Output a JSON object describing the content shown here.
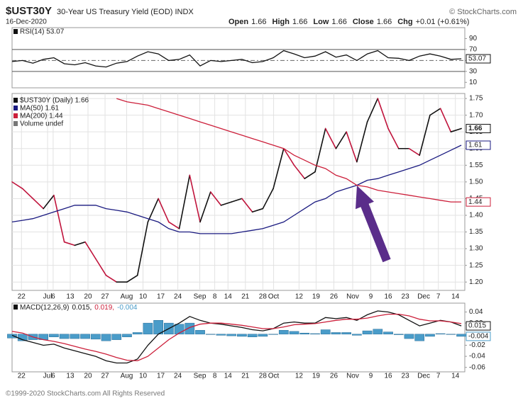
{
  "header": {
    "symbol": "$UST30Y",
    "description": "30-Year US Treasury Yield (EOD) INDX",
    "copyright": "© StockCharts.com",
    "date": "16-Dec-2020",
    "quote": [
      {
        "label": "Open",
        "value": "1.66"
      },
      {
        "label": "High",
        "value": "1.66"
      },
      {
        "label": "Low",
        "value": "1.66"
      },
      {
        "label": "Close",
        "value": "1.66"
      },
      {
        "label": "Chg",
        "value": "+0.01 (+0.61%)"
      }
    ]
  },
  "footer": "©1999-2020 StockCharts.com All Rights Reserved",
  "chart_data": [
    {
      "type": "line",
      "ylim": [
        0,
        110
      ],
      "yticks": [
        90,
        70,
        50,
        30,
        10
      ],
      "bands": [
        30,
        70
      ],
      "midline": 50,
      "series": [
        {
          "name": "RSI(14) 53.07",
          "color": "#111111",
          "kind": "line",
          "end_label": "53.07",
          "values": [
            48,
            50,
            45,
            52,
            55,
            44,
            42,
            46,
            40,
            38,
            45,
            48,
            58,
            66,
            62,
            50,
            52,
            60,
            40,
            50,
            48,
            50,
            52,
            46,
            48,
            55,
            68,
            62,
            55,
            58,
            66,
            56,
            60,
            50,
            62,
            68,
            55,
            54,
            50,
            58,
            62,
            58,
            52,
            53.07
          ]
        }
      ]
    },
    {
      "type": "line",
      "grid": true,
      "ylim": [
        1.175,
        1.765
      ],
      "yticks": [
        {
          "value": 1.2,
          "label": "1.20"
        },
        1.25,
        {
          "value": 1.3,
          "label": "1.30"
        },
        1.35,
        {
          "value": 1.4,
          "label": "1.40"
        },
        1.45,
        {
          "value": 1.5,
          "label": "1.50"
        },
        1.55,
        {
          "value": 1.6,
          "label": "1.60"
        },
        1.65,
        {
          "value": 1.7,
          "label": "1.70"
        },
        1.75
      ],
      "x": [
        0,
        3,
        6,
        9,
        12,
        15,
        18,
        21,
        24,
        27,
        30,
        33,
        36,
        39,
        42,
        45,
        48,
        51,
        54,
        57,
        60,
        63,
        66,
        69,
        72,
        75,
        78,
        81,
        84,
        87,
        90,
        93,
        96,
        99,
        102,
        105,
        108,
        111,
        114,
        117,
        120,
        123,
        126,
        129
      ],
      "xlim": [
        0,
        130
      ],
      "xticks": [
        {
          "value": 2.7,
          "label": "22"
        },
        {
          "value": 10.2,
          "label": "Jul"
        },
        {
          "value": 11.8,
          "label": "6"
        },
        {
          "value": 16.7,
          "label": "13"
        },
        {
          "value": 21.8,
          "label": "20"
        },
        {
          "value": 26.7,
          "label": "27"
        },
        {
          "value": 32.9,
          "label": "Aug"
        },
        {
          "value": 37.6,
          "label": "10"
        },
        {
          "value": 42.7,
          "label": "17"
        },
        {
          "value": 47.6,
          "label": "24"
        },
        {
          "value": 53.9,
          "label": "Sep"
        },
        {
          "value": 58.2,
          "label": "8"
        },
        {
          "value": 62,
          "label": "14"
        },
        {
          "value": 67,
          "label": "21"
        },
        {
          "value": 72,
          "label": "28"
        },
        {
          "value": 75.1,
          "label": "Oct"
        },
        {
          "value": 82.4,
          "label": "12"
        },
        {
          "value": 87.3,
          "label": "19"
        },
        {
          "value": 92.4,
          "label": "26"
        },
        {
          "value": 97.8,
          "label": "Nov"
        },
        {
          "value": 103,
          "label": "9"
        },
        {
          "value": 108,
          "label": "16"
        },
        {
          "value": 112.9,
          "label": "23"
        },
        {
          "value": 118.2,
          "label": "Dec"
        },
        {
          "value": 122.4,
          "label": "7"
        },
        {
          "value": 127.3,
          "label": "14"
        }
      ],
      "legend_extra": "Volume undef",
      "series": [
        {
          "name": "$UST30Y (Daily) 1.66",
          "color": "#111111",
          "down_color": "#c0143c",
          "kind": "updown",
          "end_label": "1.66",
          "values": [
            1.5,
            1.48,
            1.45,
            1.42,
            1.46,
            1.32,
            1.31,
            1.32,
            1.27,
            1.22,
            1.2,
            1.2,
            1.22,
            1.38,
            1.45,
            1.38,
            1.36,
            1.52,
            1.38,
            1.47,
            1.43,
            1.44,
            1.45,
            1.41,
            1.42,
            1.48,
            1.6,
            1.55,
            1.51,
            1.53,
            1.66,
            1.6,
            1.65,
            1.56,
            1.68,
            1.75,
            1.66,
            1.6,
            1.6,
            1.58,
            1.7,
            1.72,
            1.65,
            1.66
          ]
        },
        {
          "name": "MA(50) 1.61",
          "color": "#1a1a80",
          "kind": "line",
          "end_label": "1.61",
          "values": [
            1.38,
            1.385,
            1.39,
            1.4,
            1.41,
            1.42,
            1.43,
            1.43,
            1.43,
            1.42,
            1.415,
            1.41,
            1.4,
            1.39,
            1.38,
            1.36,
            1.35,
            1.35,
            1.345,
            1.345,
            1.345,
            1.345,
            1.35,
            1.355,
            1.36,
            1.37,
            1.38,
            1.4,
            1.42,
            1.44,
            1.45,
            1.47,
            1.48,
            1.49,
            1.505,
            1.51,
            1.52,
            1.53,
            1.54,
            1.55,
            1.565,
            1.58,
            1.595,
            1.61
          ]
        },
        {
          "name": "MA(200) 1.44",
          "color": "#cc1f3a",
          "kind": "line",
          "end_label": "1.44",
          "values": [
            null,
            null,
            null,
            null,
            null,
            null,
            null,
            null,
            null,
            null,
            1.75,
            1.74,
            1.735,
            1.73,
            1.72,
            1.71,
            1.7,
            1.69,
            1.68,
            1.67,
            1.66,
            1.65,
            1.64,
            1.63,
            1.62,
            1.61,
            1.6,
            1.58,
            1.565,
            1.55,
            1.54,
            1.52,
            1.51,
            1.49,
            1.485,
            1.475,
            1.47,
            1.465,
            1.46,
            1.455,
            1.45,
            1.445,
            1.44,
            1.44
          ]
        }
      ]
    },
    {
      "type": "line",
      "title": "MACD(12,26,9)",
      "ylim": [
        -0.068,
        0.056
      ],
      "yticks": [
        0.04,
        0.02,
        -0.02,
        -0.04,
        -0.06
      ],
      "series": [
        {
          "name": "-0.004",
          "color": "#4a9cc9",
          "kind": "bar",
          "end_label": "-0.004",
          "values": [
            -0.007,
            -0.012,
            -0.01,
            -0.01,
            -0.005,
            -0.008,
            -0.008,
            -0.008,
            -0.009,
            -0.012,
            -0.01,
            -0.005,
            0.003,
            0.02,
            0.025,
            0.02,
            0.018,
            0.02,
            0.007,
            0,
            -0.002,
            -0.003,
            -0.004,
            -0.005,
            -0.004,
            0,
            0.007,
            0.005,
            0.002,
            0.001,
            0.008,
            0.003,
            0.003,
            -0.002,
            0.006,
            0.009,
            0.004,
            -0.001,
            -0.008,
            -0.012,
            -0.004,
            0.001,
            0,
            -0.004
          ]
        },
        {
          "name": "0.015,",
          "color": "#111111",
          "kind": "line",
          "end_label": "0.015",
          "values": [
            -0.002,
            -0.01,
            -0.015,
            -0.02,
            -0.018,
            -0.025,
            -0.03,
            -0.035,
            -0.04,
            -0.048,
            -0.052,
            -0.052,
            -0.045,
            -0.02,
            0.0,
            0.01,
            0.02,
            0.032,
            0.025,
            0.02,
            0.018,
            0.015,
            0.012,
            0.008,
            0.006,
            0.01,
            0.02,
            0.022,
            0.02,
            0.02,
            0.03,
            0.028,
            0.03,
            0.025,
            0.035,
            0.042,
            0.04,
            0.035,
            0.025,
            0.015,
            0.02,
            0.025,
            0.022,
            0.015
          ]
        },
        {
          "name": "0.019,",
          "color": "#cc1f3a",
          "kind": "line",
          "values": [
            0.005,
            0.002,
            -0.005,
            -0.01,
            -0.013,
            -0.017,
            -0.022,
            -0.027,
            -0.031,
            -0.036,
            -0.042,
            -0.047,
            -0.048,
            -0.04,
            -0.025,
            -0.01,
            0.002,
            0.012,
            0.018,
            0.02,
            0.02,
            0.018,
            0.016,
            0.013,
            0.01,
            0.01,
            0.013,
            0.017,
            0.018,
            0.019,
            0.022,
            0.025,
            0.027,
            0.027,
            0.029,
            0.033,
            0.036,
            0.036,
            0.033,
            0.027,
            0.024,
            0.024,
            0.022,
            0.019
          ]
        }
      ]
    }
  ]
}
